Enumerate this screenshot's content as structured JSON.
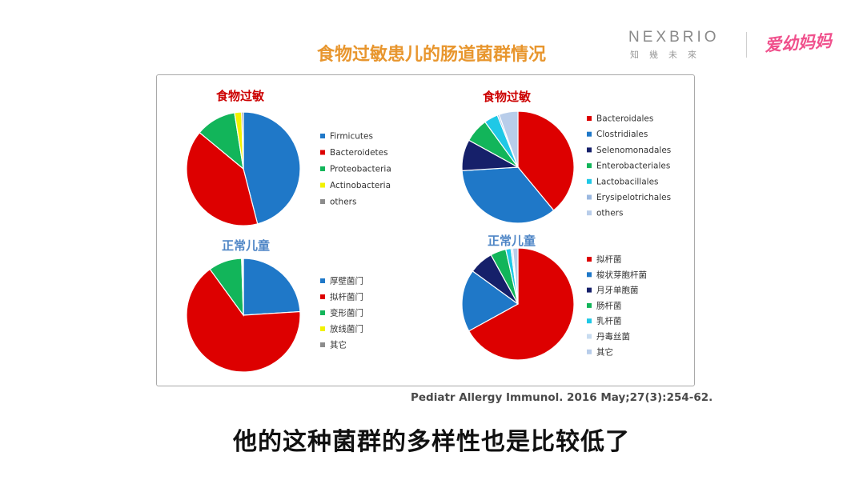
{
  "title": "食物过敏患儿的肠道菌群情况",
  "brand": {
    "name": "NEXBRIO",
    "sub": "知幾未來",
    "partner_logo": "爱幼妈妈"
  },
  "citation": "Pediatr Allergy Immunol. 2016 May;27(3):254-62.",
  "subtitle": "他的这种菌群的多样性也是比较低了",
  "chart_data": [
    {
      "type": "pie",
      "title": "食物过敏",
      "title_color": "#cc0000",
      "slices": [
        {
          "label": "Firmicutes",
          "value": 46,
          "color": "#1f78c8"
        },
        {
          "label": "Bacteroidetes",
          "value": 40,
          "color": "#dd0000"
        },
        {
          "label": "Proteobacteria",
          "value": 11.5,
          "color": "#12b55a"
        },
        {
          "label": "Actinobacteria",
          "value": 2,
          "color": "#f2f200"
        },
        {
          "label": "others",
          "value": 0.5,
          "color": "#8c8c8c"
        }
      ]
    },
    {
      "type": "pie",
      "title": "食物过敏",
      "title_color": "#cc0000",
      "slices": [
        {
          "label": "Bacteroidales",
          "value": 39,
          "color": "#dd0000"
        },
        {
          "label": "Clostridiales",
          "value": 35,
          "color": "#1f78c8"
        },
        {
          "label": "Selenomonadales",
          "value": 9,
          "color": "#16206a"
        },
        {
          "label": "Enterobacteriales",
          "value": 7,
          "color": "#12b55a"
        },
        {
          "label": "Lactobacillales",
          "value": 4,
          "color": "#1fc8e6"
        },
        {
          "label": "Erysipelotrichales",
          "value": 0.5,
          "color": "#9bb8e0"
        },
        {
          "label": "others",
          "value": 5.5,
          "color": "#b8cdea"
        }
      ]
    },
    {
      "type": "pie",
      "title": "正常儿童",
      "title_color": "#4f86c6",
      "slices": [
        {
          "label": "厚壁菌门",
          "value": 24,
          "color": "#1f78c8"
        },
        {
          "label": "拟杆菌门",
          "value": 66,
          "color": "#dd0000"
        },
        {
          "label": "变形菌门",
          "value": 9.5,
          "color": "#12b55a"
        },
        {
          "label": "放线菌门",
          "value": 0.3,
          "color": "#f2f200"
        },
        {
          "label": "其它",
          "value": 0.2,
          "color": "#8c8c8c"
        }
      ]
    },
    {
      "type": "pie",
      "title": "正常儿童",
      "title_color": "#4f86c6",
      "slices": [
        {
          "label": "拟杆菌",
          "value": 67,
          "color": "#dd0000"
        },
        {
          "label": "梭状芽胞杆菌",
          "value": 18,
          "color": "#1f78c8"
        },
        {
          "label": "月牙单胞菌",
          "value": 7,
          "color": "#16206a"
        },
        {
          "label": "肠杆菌",
          "value": 4.5,
          "color": "#12b55a"
        },
        {
          "label": "乳杆菌",
          "value": 1.5,
          "color": "#1fc8e6"
        },
        {
          "label": "丹毒丝菌",
          "value": 0.5,
          "color": "#c8dcf0"
        },
        {
          "label": "其它",
          "value": 1.5,
          "color": "#b8cdea"
        }
      ]
    }
  ]
}
